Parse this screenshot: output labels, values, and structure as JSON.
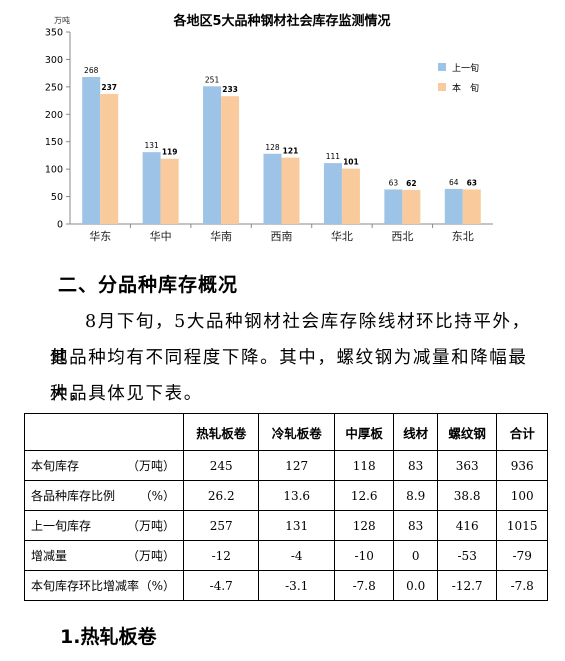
{
  "chart_data": {
    "type": "bar",
    "title": "各地区5大品种钢材社会库存监测情况",
    "ylabel": "万吨",
    "ylim": [
      0,
      350
    ],
    "yticks": [
      0,
      50,
      100,
      150,
      200,
      250,
      300,
      350
    ],
    "categories": [
      "华东",
      "华中",
      "华南",
      "西南",
      "华北",
      "西北",
      "东北"
    ],
    "series": [
      {
        "name": "上一旬",
        "color": "#9dc3e6",
        "values": [
          268,
          131,
          251,
          128,
          111,
          63,
          64
        ]
      },
      {
        "name": "本　旬",
        "color": "#f9cb9c",
        "values": [
          237,
          119,
          233,
          121,
          101,
          62,
          63
        ]
      }
    ],
    "legend": "right",
    "grid": false
  },
  "section_heading": "二、分品种库存概况",
  "paragraph": {
    "line1": "8月下旬，5大品种钢材社会库存除线材环比持平外，其",
    "line2": "他品种均有不同程度下降。其中，螺纹钢为减量和降幅最大品",
    "line3": "种，具体见下表。"
  },
  "table": {
    "headers": [
      "",
      "热轧板卷",
      "冷轧板卷",
      "中厚板",
      "线材",
      "螺纹钢",
      "合计"
    ],
    "rows": [
      {
        "name": "本旬库存",
        "unit": "（万吨）",
        "cells": [
          "245",
          "127",
          "118",
          "83",
          "363",
          "936"
        ]
      },
      {
        "name": "各品种库存比例",
        "unit": "（%）",
        "cells": [
          "26.2",
          "13.6",
          "12.6",
          "8.9",
          "38.8",
          "100"
        ]
      },
      {
        "name": "上一旬库存",
        "unit": "（万吨）",
        "cells": [
          "257",
          "131",
          "128",
          "83",
          "416",
          "1015"
        ]
      },
      {
        "name": "增减量",
        "unit": "（万吨）",
        "cells": [
          "-12",
          "-4",
          "-10",
          "0",
          "-53",
          "-79"
        ]
      },
      {
        "name": "本旬库存环比增减率",
        "unit": "（%）",
        "cells": [
          "-4.7",
          "-3.1",
          "-7.8",
          "0.0",
          "-12.7",
          "-7.8"
        ]
      }
    ]
  },
  "subsection_heading": "1.热轧板卷"
}
